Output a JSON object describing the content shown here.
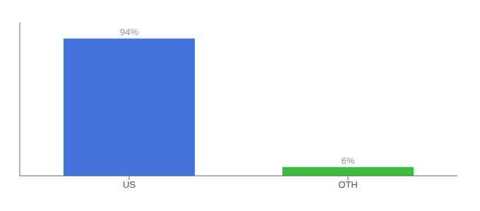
{
  "chart_data": {
    "type": "bar",
    "categories": [
      "US",
      "OTH"
    ],
    "values": [
      94,
      6
    ],
    "value_labels": [
      "94%",
      "6%"
    ],
    "colors": [
      "#4472db",
      "#3dbb3d"
    ],
    "ylim": [
      0,
      105
    ],
    "yticks": [],
    "data_labels": true,
    "tick_labels": "x",
    "grid": false
  }
}
